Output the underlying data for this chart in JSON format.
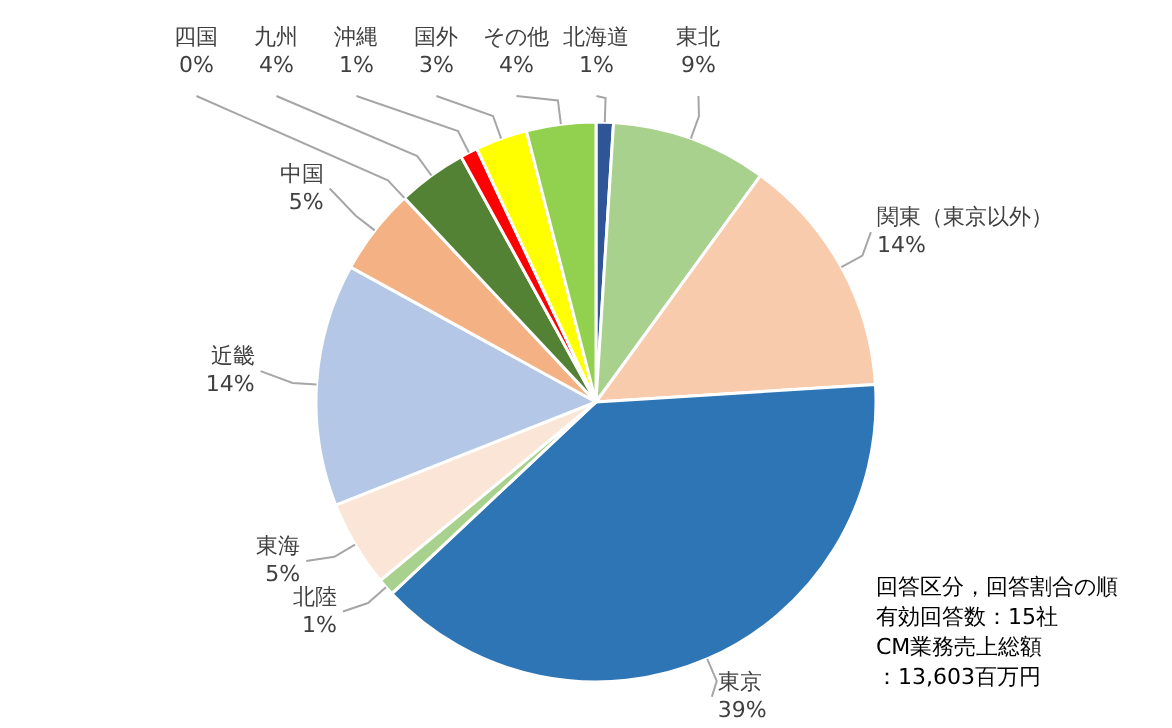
{
  "chart_data": {
    "type": "pie",
    "categories": [
      "北海道",
      "東北",
      "関東（東京以外）",
      "東京",
      "北陸",
      "東海",
      "近畿",
      "中国",
      "四国",
      "九州",
      "沖縄",
      "国外",
      "その他"
    ],
    "values": [
      1,
      9,
      14,
      39,
      1,
      5,
      14,
      5,
      0,
      4,
      1,
      3,
      4
    ],
    "value_labels": [
      "1%",
      "9%",
      "14%",
      "39%",
      "1%",
      "5%",
      "14%",
      "5%",
      "0%",
      "4%",
      "1%",
      "3%",
      "4%"
    ],
    "colors": [
      "#2f5597",
      "#a9d18e",
      "#f8cbad",
      "#2e75b6",
      "#a9d18e",
      "#fbe5d6",
      "#b4c7e7",
      "#f4b183",
      "#c5e0b4",
      "#548235",
      "#ff0000",
      "#ffff00",
      "#92d050"
    ],
    "annotations": [
      "回答区分，回答割合の順",
      "有効回答数：15社",
      "CM業務売上総額",
      "：13,603百万円"
    ]
  }
}
